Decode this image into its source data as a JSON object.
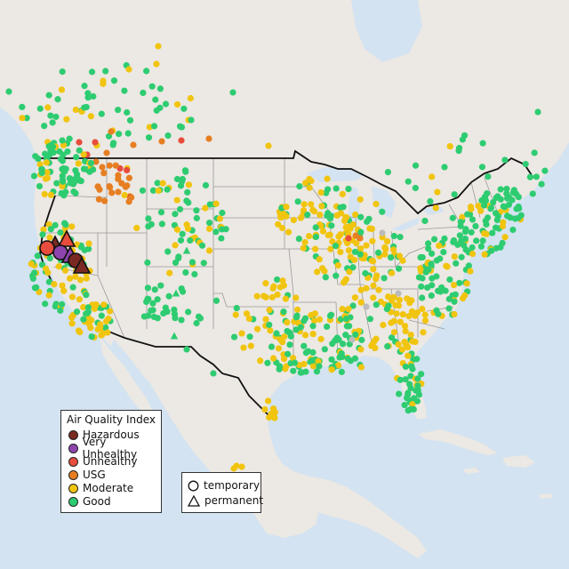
{
  "colors": {
    "ocean": "#d3e3f1",
    "land": "#ece8e3",
    "state_line": "#9a9a9a",
    "country_line": "#111111",
    "Hazardous": "#7a2a22",
    "Very Unhealthy": "#8e44ad",
    "Unhealthy": "#e74c3c",
    "USG": "#e67e22",
    "Moderate": "#f1c40f",
    "Good": "#2ecc71",
    "Unknown": "#bbbbbb"
  },
  "legend": {
    "title": "Air Quality Index",
    "items": [
      {
        "label": "Hazardous",
        "key": "Hazardous"
      },
      {
        "label": "Very Unhealthy",
        "key": "Very Unhealthy"
      },
      {
        "label": "Unhealthy",
        "key": "Unhealthy"
      },
      {
        "label": "USG",
        "key": "USG"
      },
      {
        "label": "Moderate",
        "key": "Moderate"
      },
      {
        "label": "Good",
        "key": "Good"
      }
    ]
  },
  "monitor_type_legend": {
    "items": [
      {
        "label": "temporary",
        "marker": "circle"
      },
      {
        "label": "permanent",
        "marker": "triangle"
      }
    ]
  }
}
